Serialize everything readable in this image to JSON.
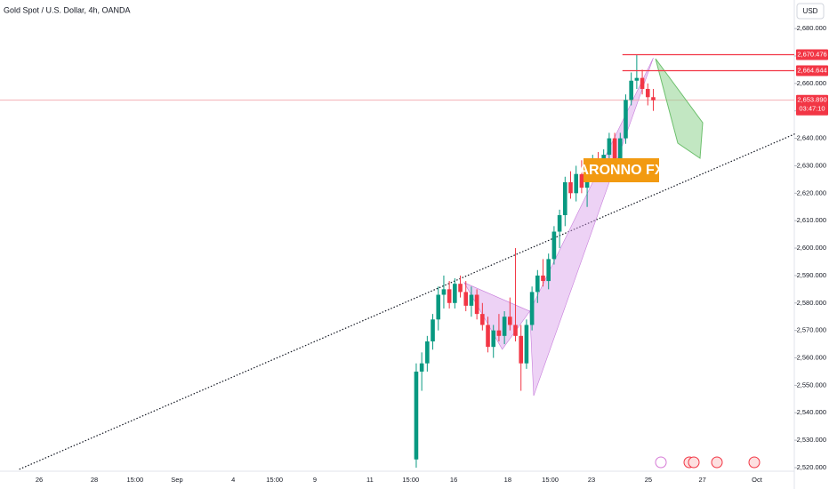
{
  "chart_data": {
    "type": "candlestick",
    "title": "Gold Spot / U.S. Dollar, 4h, OANDA",
    "currency": "USD",
    "watermark": "ARONNO FX",
    "colors": {
      "up": "#089981",
      "down": "#f23645"
    },
    "ylim": [
      2518.7,
      2690.4
    ],
    "yticks": [
      {
        "value": 2520,
        "label": "2,520.000"
      },
      {
        "value": 2530,
        "label": "2,530.000"
      },
      {
        "value": 2540,
        "label": "2,540.000"
      },
      {
        "value": 2550,
        "label": "2,550.000"
      },
      {
        "value": 2560,
        "label": "2,560.000"
      },
      {
        "value": 2570,
        "label": "2,570.000"
      },
      {
        "value": 2580,
        "label": "2,580.000"
      },
      {
        "value": 2590,
        "label": "2,590.000"
      },
      {
        "value": 2600,
        "label": "2,600.000"
      },
      {
        "value": 2610,
        "label": "2,610.000"
      },
      {
        "value": 2620,
        "label": "2,620.000"
      },
      {
        "value": 2630,
        "label": "2,630.000"
      },
      {
        "value": 2640,
        "label": "2,640.000"
      },
      {
        "value": 2650,
        "label": "2,650.000"
      },
      {
        "value": 2660,
        "label": "2,660.000"
      },
      {
        "value": 2670,
        "label": "2,670.000"
      },
      {
        "value": 2680,
        "label": "2,680.000"
      }
    ],
    "xlim": [
      0,
      144.4
    ],
    "xticks": [
      {
        "value": 7.1,
        "label": "26"
      },
      {
        "value": 17.1,
        "label": "28"
      },
      {
        "value": 24.5,
        "label": "15:00"
      },
      {
        "value": 32.1,
        "label": "Sep"
      },
      {
        "value": 42.3,
        "label": "4"
      },
      {
        "value": 49.8,
        "label": "15:00"
      },
      {
        "value": 57.1,
        "label": "9"
      },
      {
        "value": 67.1,
        "label": "11"
      },
      {
        "value": 74.5,
        "label": "15:00"
      },
      {
        "value": 82.3,
        "label": "16"
      },
      {
        "value": 92.1,
        "label": "18"
      },
      {
        "value": 99.8,
        "label": "15:00"
      },
      {
        "value": 107.3,
        "label": "23"
      },
      {
        "value": 117.6,
        "label": "25"
      },
      {
        "value": 127.4,
        "label": "27"
      },
      {
        "value": 137.3,
        "label": "Oct"
      }
    ],
    "x": [
      75.5,
      76.5,
      77.5,
      78.5,
      79.5,
      80.5,
      81.5,
      82.5,
      83.5,
      84.5,
      85.5,
      86.5,
      87.5,
      88.5,
      89.5,
      90.5,
      91.5,
      92.5,
      93.5,
      94.5,
      95.5,
      96.5,
      97.5,
      98.5,
      99.5,
      100.5,
      101.5,
      102.5,
      103.5,
      104.5,
      105.5,
      106.5,
      107.5,
      108.5,
      109.5,
      110.5,
      111.5,
      112.5,
      113.5,
      114.5,
      115.5,
      116.5,
      117.5,
      118.5
    ],
    "open": [
      2523,
      2555,
      2558,
      2566,
      2574,
      2583,
      2585,
      2580,
      2587,
      2584,
      2579,
      2583,
      2576,
      2572,
      2564,
      2570,
      2568,
      2575,
      2572,
      2568,
      2558,
      2572,
      2584,
      2590,
      2588,
      2596,
      2606,
      2612,
      2624,
      2620,
      2627,
      2622,
      2628,
      2632,
      2626,
      2634,
      2640,
      2630,
      2640,
      2654,
      2661,
      2662,
      2658,
      2655
    ],
    "high": [
      2558,
      2562,
      2568,
      2576,
      2586,
      2590,
      2588,
      2589,
      2590,
      2588,
      2586,
      2585,
      2580,
      2575,
      2572,
      2576,
      2577,
      2582,
      2600,
      2572,
      2574,
      2586,
      2592,
      2596,
      2598,
      2608,
      2614,
      2626,
      2628,
      2630,
      2632,
      2630,
      2634,
      2635,
      2636,
      2642,
      2642,
      2642,
      2656,
      2664,
      2670.476,
      2665,
      2660,
      2658
    ],
    "low": [
      2520,
      2548,
      2555,
      2563,
      2570,
      2578,
      2578,
      2578,
      2582,
      2577,
      2575,
      2574,
      2570,
      2562,
      2560,
      2566,
      2565,
      2570,
      2566,
      2548,
      2556,
      2570,
      2580,
      2586,
      2585,
      2594,
      2600,
      2608,
      2618,
      2617,
      2620,
      2615,
      2624,
      2624,
      2624,
      2630,
      2628,
      2628,
      2638,
      2652,
      2658,
      2656,
      2652,
      2650
    ],
    "close": [
      2555,
      2558,
      2566,
      2574,
      2583,
      2585,
      2580,
      2587,
      2584,
      2579,
      2583,
      2576,
      2572,
      2564,
      2570,
      2568,
      2575,
      2572,
      2568,
      2558,
      2572,
      2584,
      2590,
      2588,
      2596,
      2606,
      2612,
      2624,
      2620,
      2627,
      2622,
      2628,
      2632,
      2626,
      2634,
      2640,
      2630,
      2640,
      2654,
      2661,
      2662,
      2658,
      2655,
      2653.89
    ],
    "price_lines": [
      {
        "value": 2670.476,
        "label": "2,670.476",
        "start": 112.9
      },
      {
        "value": 2664.644,
        "label": "2,664.644",
        "start": 112.9
      }
    ],
    "last_price": {
      "value": 2653.89,
      "label": "2,653.890",
      "countdown": "03:47:10"
    },
    "trendline": {
      "x": [
        3.5,
        144.4
      ],
      "y": [
        2519.4,
        2641.8
      ]
    },
    "pattern": {
      "x": [
        84.2,
        91.1,
        96.1,
        96.8,
        118.5
      ],
      "y": [
        2587.4,
        2563.1,
        2577.0,
        2546.2,
        2669.3
      ]
    }
  }
}
